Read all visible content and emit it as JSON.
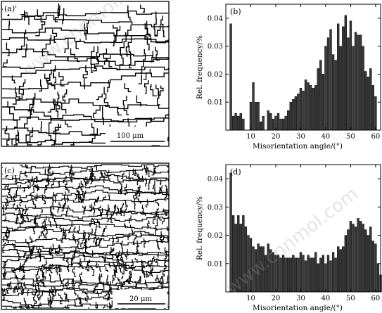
{
  "panels": {
    "a": {
      "label": "(a)'",
      "scale_bar": "100 μm"
    },
    "c": {
      "label": "(c)",
      "scale_bar": "20 μm"
    }
  },
  "chart_data": [
    {
      "type": "bar",
      "label": "(b)",
      "xlabel": "Misorientation angle/(°)",
      "ylabel": "Rel. frequency/%",
      "xlim": [
        0,
        62
      ],
      "ylim": [
        0,
        0.045
      ],
      "xticks": [
        10,
        20,
        30,
        40,
        50,
        60
      ],
      "yticks": [
        0.01,
        0.02,
        0.03,
        0.04
      ],
      "ytick_labels": [
        "0.01",
        "0.02",
        "0.03",
        "0.04"
      ],
      "x": [
        2,
        3,
        4,
        5,
        6,
        7,
        8,
        9,
        10,
        11,
        12,
        13,
        14,
        15,
        16,
        17,
        18,
        19,
        20,
        21,
        22,
        23,
        24,
        25,
        26,
        27,
        28,
        29,
        30,
        31,
        32,
        33,
        34,
        35,
        36,
        37,
        38,
        39,
        40,
        41,
        42,
        43,
        44,
        45,
        46,
        47,
        48,
        49,
        50,
        51,
        52,
        53,
        54,
        55,
        56,
        57,
        58,
        59,
        60
      ],
      "values": [
        0.038,
        0.005,
        0.006,
        0.005,
        0.006,
        0.004,
        0.0,
        0.0,
        0.01,
        0.017,
        0.01,
        0.01,
        0.003,
        0.005,
        0.0,
        0.007,
        0.006,
        0.004,
        0.005,
        0.006,
        0.004,
        0.004,
        0.005,
        0.007,
        0.01,
        0.011,
        0.012,
        0.013,
        0.015,
        0.014,
        0.018,
        0.017,
        0.016,
        0.015,
        0.016,
        0.022,
        0.025,
        0.02,
        0.03,
        0.033,
        0.036,
        0.027,
        0.025,
        0.038,
        0.03,
        0.037,
        0.041,
        0.033,
        0.039,
        0.03,
        0.035,
        0.034,
        0.034,
        0.03,
        0.021,
        0.019,
        0.022,
        0.016,
        0.012
      ]
    },
    {
      "type": "bar",
      "label": "(d)",
      "xlabel": "Misorientation angle/(°)",
      "ylabel": "Rel. frequency/%",
      "xlim": [
        0,
        62
      ],
      "ylim": [
        0,
        0.045
      ],
      "xticks": [
        10,
        20,
        30,
        40,
        50,
        60
      ],
      "yticks": [
        0.01,
        0.02,
        0.03,
        0.04
      ],
      "ytick_labels": [
        "0.01",
        "0.02",
        "0.03",
        "0.04"
      ],
      "x": [
        2,
        3,
        4,
        5,
        6,
        7,
        8,
        9,
        10,
        11,
        12,
        13,
        14,
        15,
        16,
        17,
        18,
        19,
        20,
        21,
        22,
        23,
        24,
        25,
        26,
        27,
        28,
        29,
        30,
        31,
        32,
        33,
        34,
        35,
        36,
        37,
        38,
        39,
        40,
        41,
        42,
        43,
        44,
        45,
        46,
        47,
        48,
        49,
        50,
        51,
        52,
        53,
        54,
        55,
        56,
        57,
        58,
        59,
        60,
        61,
        62
      ],
      "values": [
        0.042,
        0.027,
        0.024,
        0.027,
        0.024,
        0.027,
        0.023,
        0.02,
        0.019,
        0.016,
        0.015,
        0.017,
        0.016,
        0.016,
        0.013,
        0.017,
        0.015,
        0.014,
        0.013,
        0.013,
        0.012,
        0.013,
        0.012,
        0.012,
        0.012,
        0.013,
        0.012,
        0.012,
        0.014,
        0.013,
        0.011,
        0.013,
        0.012,
        0.012,
        0.014,
        0.01,
        0.012,
        0.013,
        0.01,
        0.013,
        0.011,
        0.014,
        0.012,
        0.016,
        0.015,
        0.016,
        0.02,
        0.022,
        0.025,
        0.024,
        0.023,
        0.026,
        0.025,
        0.024,
        0.022,
        0.02,
        0.023,
        0.018,
        0.017,
        0.01,
        0.006
      ]
    }
  ]
}
